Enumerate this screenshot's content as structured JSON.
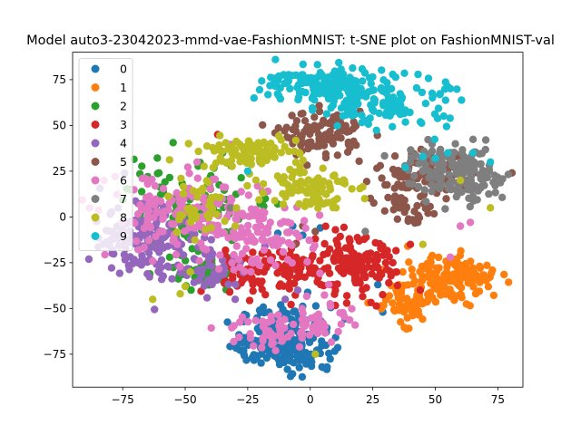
{
  "chart_data": {
    "type": "scatter",
    "title": "Model auto3-23042023-mmd-vae-FashionMNIST: t-SNE plot on FashionMNIST-val",
    "xlabel": "",
    "ylabel": "",
    "xlim": [
      -95,
      85
    ],
    "ylim": [
      -93,
      90
    ],
    "xticks": [
      -75,
      -50,
      -25,
      0,
      25,
      50,
      75
    ],
    "yticks": [
      -75,
      -50,
      -25,
      0,
      25,
      50,
      75
    ],
    "xtick_labels": [
      "−75",
      "−50",
      "−25",
      "0",
      "25",
      "50",
      "75"
    ],
    "ytick_labels": [
      "−75",
      "−50",
      "−25",
      "0",
      "25",
      "50",
      "75"
    ],
    "grid": false,
    "legend": "upper-left",
    "series": [
      {
        "name": "0",
        "color": "#1f77b4",
        "clusters": [
          {
            "x": -10,
            "y": -65,
            "sx": 9,
            "sy": 8,
            "n": 130
          },
          {
            "x": -2,
            "y": -75,
            "sx": 6,
            "sy": 6,
            "n": 50
          },
          {
            "x": -20,
            "y": -70,
            "sx": 6,
            "sy": 5,
            "n": 40
          }
        ],
        "scatter": [
          [
            -7,
            -5
          ],
          [
            -3,
            -10
          ],
          [
            4,
            -6
          ],
          [
            -13,
            -9
          ],
          [
            27,
            -37
          ],
          [
            29,
            -52
          ]
        ]
      },
      {
        "name": "1",
        "color": "#ff7f0e",
        "clusters": [
          {
            "x": 50,
            "y": -35,
            "sx": 9,
            "sy": 7,
            "n": 130
          },
          {
            "x": 63,
            "y": -31,
            "sx": 6,
            "sy": 4,
            "n": 40
          },
          {
            "x": 38,
            "y": -48,
            "sx": 7,
            "sy": 5,
            "n": 50
          }
        ],
        "scatter": []
      },
      {
        "name": "2",
        "color": "#2ca02c",
        "clusters": [
          {
            "x": -50,
            "y": 5,
            "sx": 12,
            "sy": 12,
            "n": 110
          },
          {
            "x": -42,
            "y": -30,
            "sx": 7,
            "sy": 6,
            "n": 40
          }
        ],
        "scatter": [
          [
            -13,
            7
          ],
          [
            -18,
            10
          ],
          [
            -20,
            8
          ],
          [
            -35,
            35
          ],
          [
            -72,
            15
          ],
          [
            -65,
            22
          ]
        ]
      },
      {
        "name": "3",
        "color": "#d62728",
        "clusters": [
          {
            "x": 18,
            "y": -28,
            "sx": 8,
            "sy": 8,
            "n": 130
          },
          {
            "x": -5,
            "y": -28,
            "sx": 8,
            "sy": 6,
            "n": 70
          },
          {
            "x": -27,
            "y": -30,
            "sx": 7,
            "sy": 6,
            "n": 50
          }
        ],
        "scatter": [
          [
            -37,
            45
          ],
          [
            40,
            -15
          ],
          [
            44,
            -40
          ],
          [
            33,
            -25
          ],
          [
            2,
            -12
          ],
          [
            -15,
            -15
          ]
        ]
      },
      {
        "name": "4",
        "color": "#9467bd",
        "clusters": [
          {
            "x": -63,
            "y": -10,
            "sx": 10,
            "sy": 12,
            "n": 120
          },
          {
            "x": -38,
            "y": -28,
            "sx": 8,
            "sy": 7,
            "n": 50
          },
          {
            "x": -75,
            "y": -15,
            "sx": 5,
            "sy": 8,
            "n": 30
          }
        ],
        "scatter": [
          [
            -5,
            -40
          ],
          [
            -10,
            -45
          ],
          [
            -30,
            -45
          ]
        ]
      },
      {
        "name": "5",
        "color": "#8c564b",
        "clusters": [
          {
            "x": 5,
            "y": 45,
            "sx": 8,
            "sy": 6,
            "n": 110
          },
          {
            "x": 45,
            "y": 22,
            "sx": 10,
            "sy": 6,
            "n": 90
          },
          {
            "x": 38,
            "y": 5,
            "sx": 5,
            "sy": 4,
            "n": 30
          }
        ],
        "scatter": [
          [
            -20,
            30
          ],
          [
            28,
            28
          ],
          [
            -3,
            -5
          ],
          [
            2,
            -8
          ],
          [
            -6,
            -15
          ],
          [
            43,
            -3
          ]
        ]
      },
      {
        "name": "6",
        "color": "#e377c2",
        "clusters": [
          {
            "x": -50,
            "y": 0,
            "sx": 15,
            "sy": 12,
            "n": 150
          },
          {
            "x": -20,
            "y": -10,
            "sx": 10,
            "sy": 10,
            "n": 100
          },
          {
            "x": -15,
            "y": -62,
            "sx": 8,
            "sy": 5,
            "n": 50
          },
          {
            "x": 5,
            "y": -55,
            "sx": 6,
            "sy": 7,
            "n": 40
          }
        ],
        "scatter": [
          [
            -78,
            22
          ],
          [
            -65,
            18
          ],
          [
            56,
            -22
          ],
          [
            58,
            18
          ],
          [
            60,
            -5
          ],
          [
            64,
            -3
          ]
        ]
      },
      {
        "name": "7",
        "color": "#7f7f7f",
        "clusters": [
          {
            "x": 57,
            "y": 25,
            "sx": 9,
            "sy": 7,
            "n": 130
          },
          {
            "x": 68,
            "y": 20,
            "sx": 5,
            "sy": 6,
            "n": 40
          }
        ],
        "scatter": [
          [
            -40,
            10
          ],
          [
            -32,
            5
          ],
          [
            22,
            -8
          ],
          [
            40,
            30
          ]
        ]
      },
      {
        "name": "8",
        "color": "#bcbd22",
        "clusters": [
          {
            "x": -25,
            "y": 35,
            "sx": 10,
            "sy": 4,
            "n": 100
          },
          {
            "x": 0,
            "y": 17,
            "sx": 8,
            "sy": 6,
            "n": 90
          },
          {
            "x": -45,
            "y": 5,
            "sx": 6,
            "sy": 10,
            "n": 40
          }
        ],
        "scatter": [
          [
            -50,
            -38
          ],
          [
            -52,
            -42
          ],
          [
            -63,
            -45
          ],
          [
            -30,
            -5
          ],
          [
            -48,
            -30
          ],
          [
            45,
            -15
          ],
          [
            60,
            20
          ],
          [
            72,
            5
          ],
          [
            2,
            -75
          ]
        ]
      },
      {
        "name": "9",
        "color": "#17becf",
        "clusters": [
          {
            "x": 5,
            "y": 72,
            "sx": 12,
            "sy": 5,
            "n": 140
          },
          {
            "x": 35,
            "y": 62,
            "sx": 10,
            "sy": 7,
            "n": 90
          },
          {
            "x": 15,
            "y": 62,
            "sx": 6,
            "sy": 5,
            "n": 30
          }
        ],
        "scatter": [
          [
            -25,
            25
          ],
          [
            38,
            27
          ],
          [
            45,
            33
          ],
          [
            55,
            35
          ],
          [
            65,
            35
          ],
          [
            50,
            32
          ],
          [
            72,
            30
          ]
        ]
      }
    ]
  }
}
